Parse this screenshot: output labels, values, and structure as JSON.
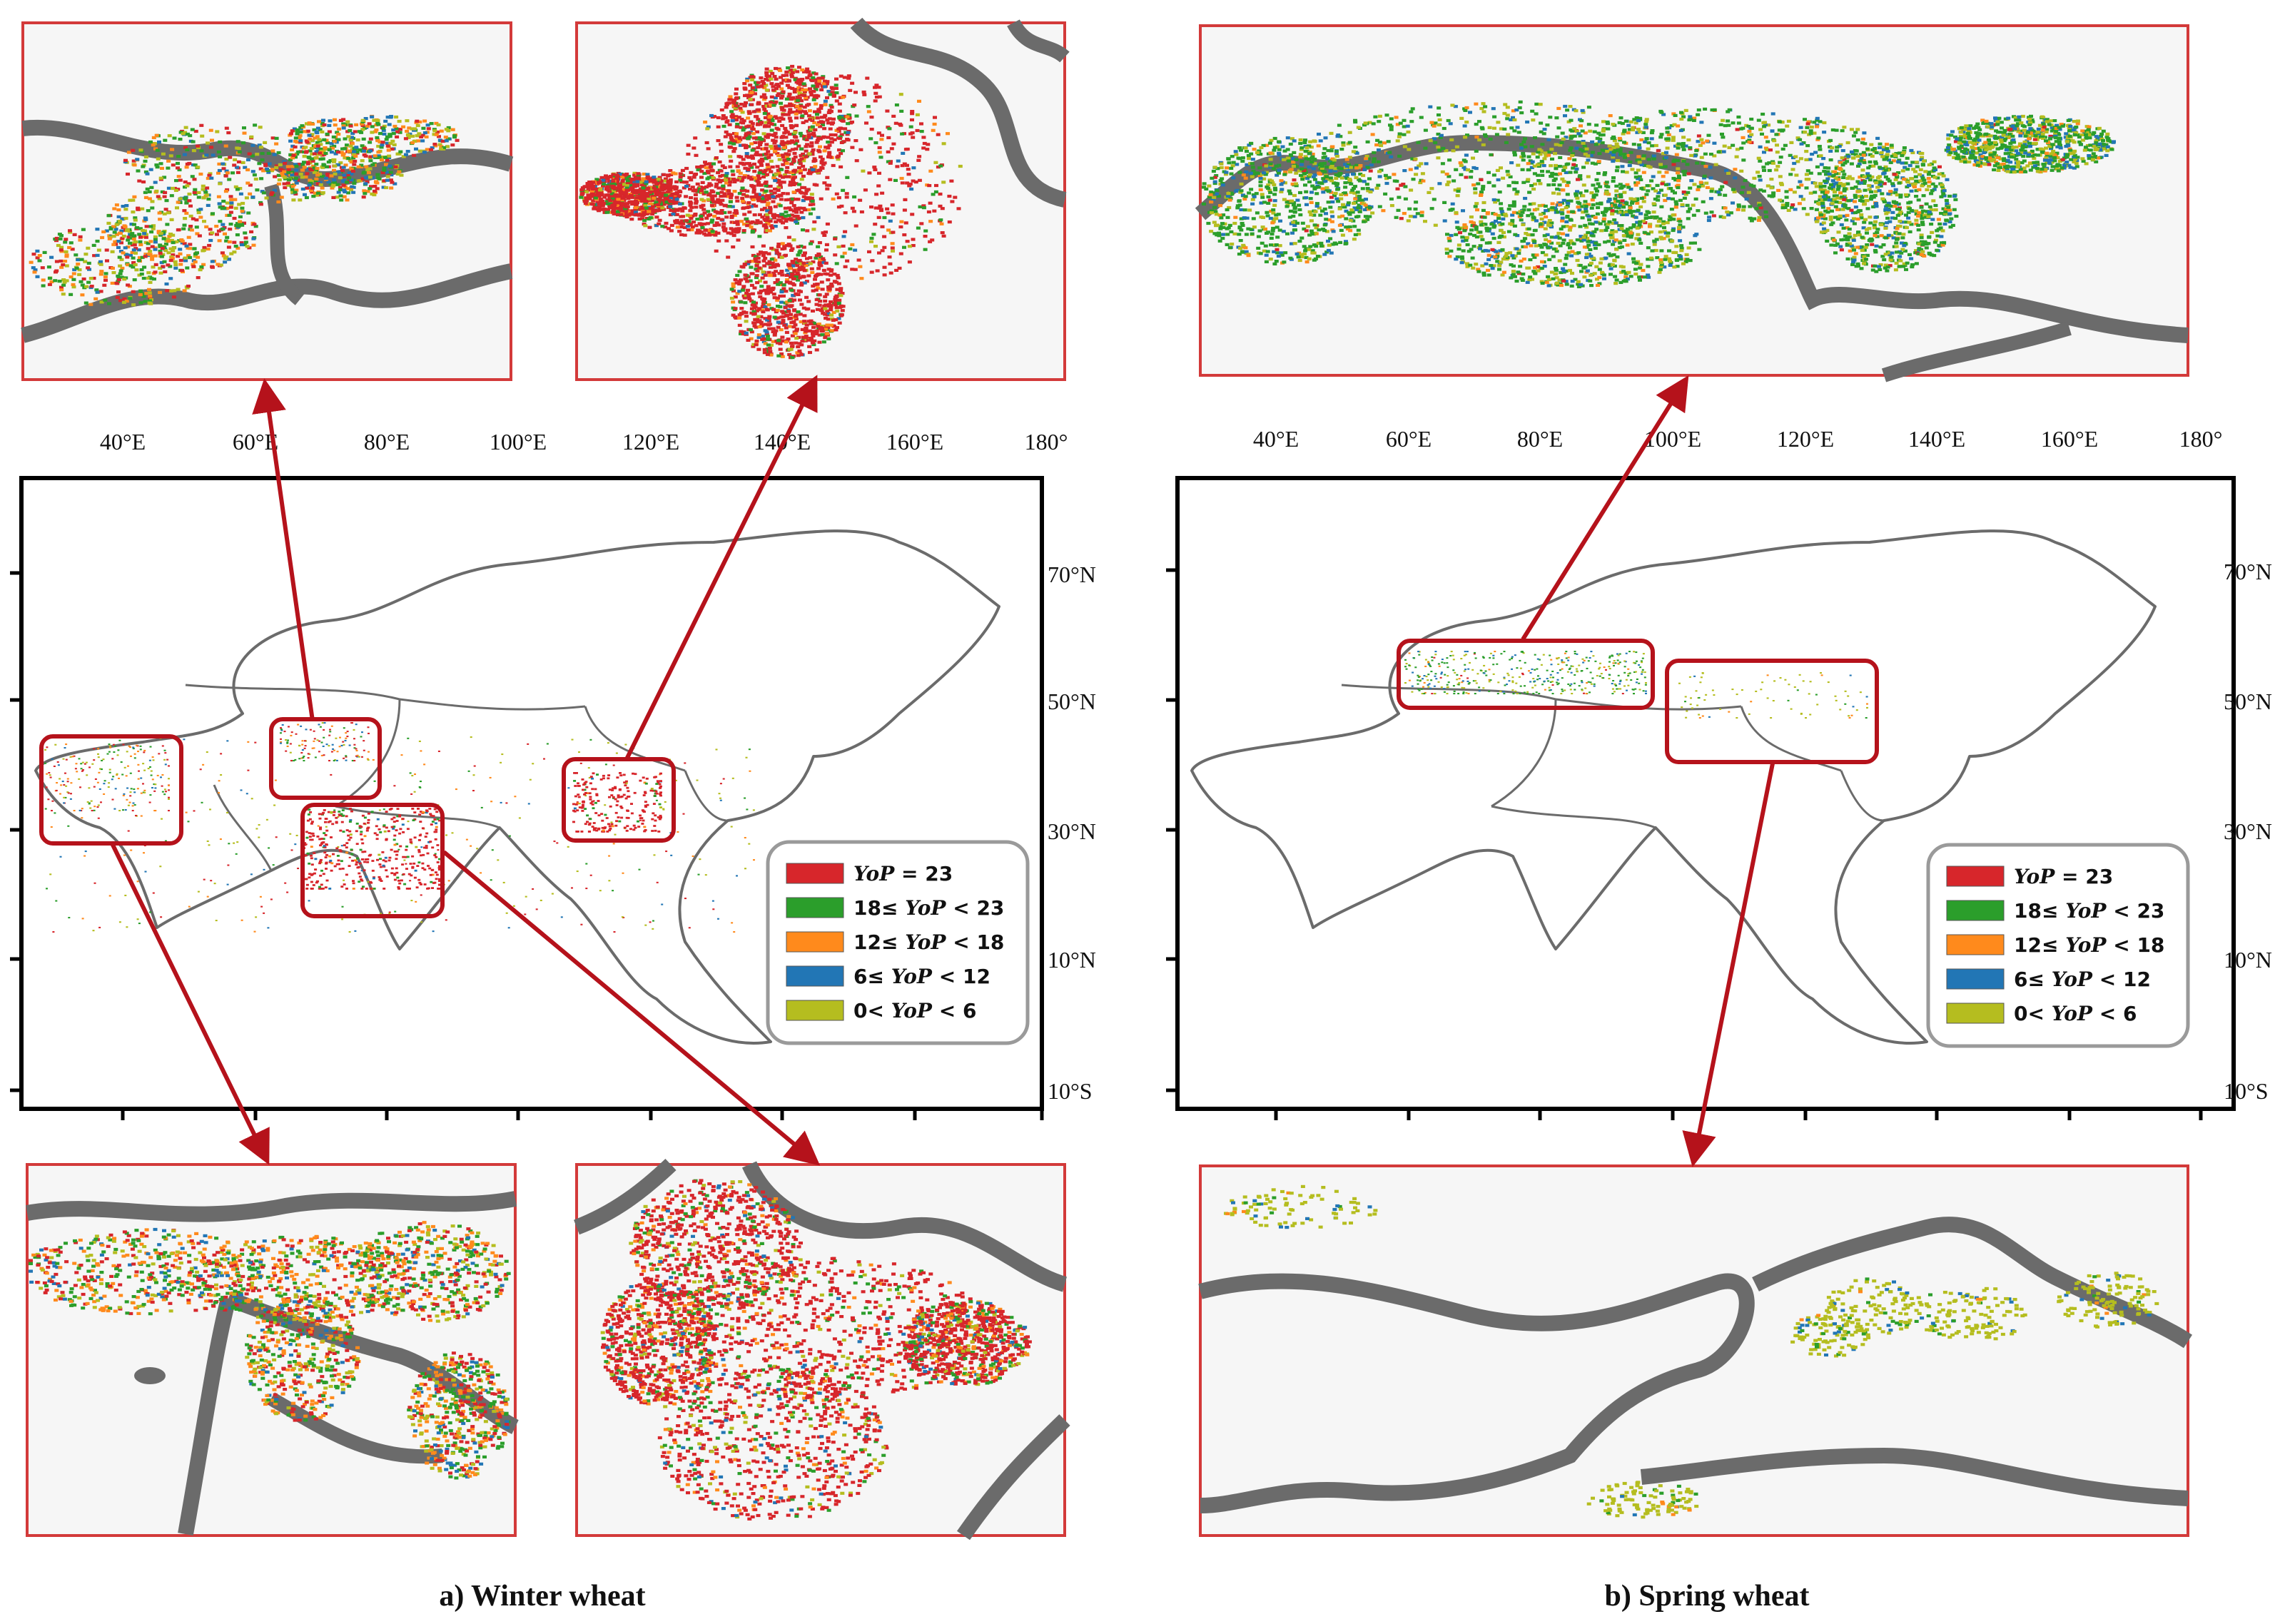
{
  "panels": [
    {
      "id": "winter",
      "caption": "a) Winter wheat",
      "top_ticks": [
        "40°E",
        "60°E",
        "80°E",
        "100°E",
        "120°E",
        "140°E",
        "160°E",
        "180°"
      ],
      "right_ticks": [
        "70°N",
        "50°N",
        "30°N",
        "10°N",
        "10°S"
      ]
    },
    {
      "id": "spring",
      "caption": "b) Spring wheat",
      "top_ticks": [
        "40°E",
        "60°E",
        "80°E",
        "100°E",
        "120°E",
        "140°E",
        "160°E",
        "180°"
      ],
      "right_ticks": [
        "70°N",
        "50°N",
        "30°N",
        "10°N",
        "10°S"
      ]
    }
  ],
  "legend": {
    "items": [
      {
        "color": "#d7262b",
        "prefix": "",
        "var": "YoP",
        "suffix": " = 23"
      },
      {
        "color": "#2b9e2b",
        "prefix": "18≤ ",
        "var": "YoP",
        "suffix": " < 23"
      },
      {
        "color": "#ff8a1c",
        "prefix": "12≤ ",
        "var": "YoP",
        "suffix": " < 18"
      },
      {
        "color": "#2276b5",
        "prefix": "6≤ ",
        "var": "YoP",
        "suffix": " < 12"
      },
      {
        "color": "#b5bd1f",
        "prefix": "0< ",
        "var": "YoP",
        "suffix": " < 6"
      }
    ]
  },
  "colors": {
    "border": "#6b6b6b",
    "highlight": "#b5121b",
    "arrow": "#b5121b",
    "inset_frame": "#d33a3a",
    "inset_bg": "#f6f6f6"
  }
}
